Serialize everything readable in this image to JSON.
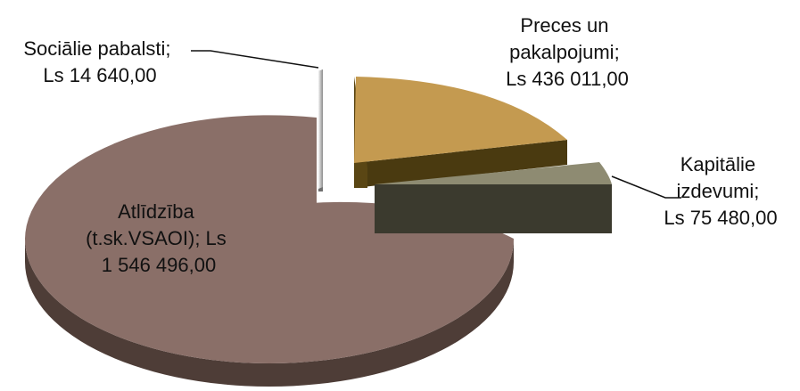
{
  "chart_data": {
    "type": "pie",
    "style": "3d-exploded",
    "title": "",
    "slices": [
      {
        "label_lines": [
          "Preces un",
          "pakalpojumi;",
          "Ls 436 011,00"
        ],
        "value": 436011,
        "color": "#C49A50"
      },
      {
        "label_lines": [
          "Kapitālie",
          "izdevumi;",
          "Ls 75 480,00"
        ],
        "value": 75480,
        "color": "#8E8B72"
      },
      {
        "label_lines": [
          "Atlīdzība",
          "(t.sk.VSAOI);  Ls",
          "1 546 496,00"
        ],
        "value": 1546496,
        "color": "#8A6F68"
      },
      {
        "label_lines": [
          "Sociālie pabalsti;",
          "Ls 14 640,00"
        ],
        "value": 14640,
        "color": "#C8C8C8"
      }
    ]
  }
}
